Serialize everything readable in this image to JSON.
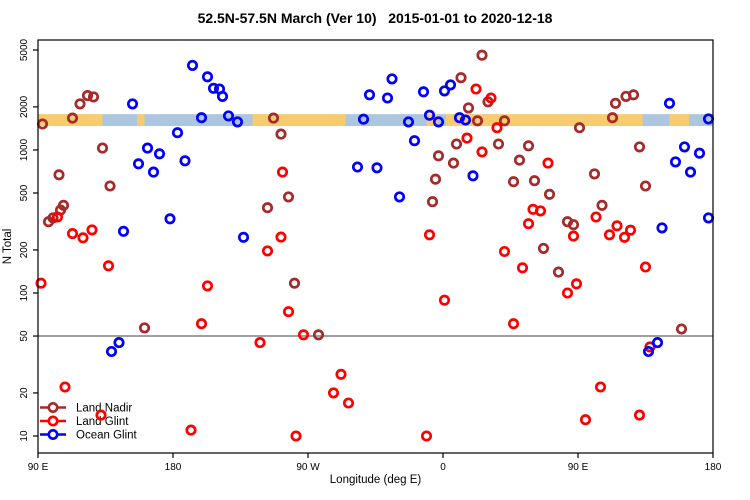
{
  "title": "52.5N-57.5N March (Ver 10)   2015-01-01 to 2020-12-18",
  "x_axis": {
    "label": "Longitude (deg E)",
    "range_deg": [
      90,
      540
    ],
    "ticks": [
      {
        "deg": 90,
        "label": "90 E"
      },
      {
        "deg": 180,
        "label": "180"
      },
      {
        "deg": 270,
        "label": "90 W"
      },
      {
        "deg": 360,
        "label": "0"
      },
      {
        "deg": 450,
        "label": "90 E"
      },
      {
        "deg": 540,
        "label": "180"
      }
    ]
  },
  "y_axis": {
    "label": "N Total",
    "scale": "log",
    "range": [
      10,
      5000
    ],
    "ticks": [
      "10",
      "20",
      "50",
      "100",
      "200",
      "500",
      "1000",
      "2000",
      "5000"
    ]
  },
  "reference_line": {
    "value": 50,
    "color": "#808080"
  },
  "map_band": {
    "top_value": 1780,
    "bottom_value": 1470,
    "land_color": "#F7CB6F",
    "ocean_color": "#ADC6E0",
    "segments": [
      {
        "from": 90,
        "to": 133,
        "surface": "land"
      },
      {
        "from": 133,
        "to": 156,
        "surface": "ocean"
      },
      {
        "from": 156,
        "to": 161,
        "surface": "land"
      },
      {
        "from": 161,
        "to": 233,
        "surface": "ocean"
      },
      {
        "from": 233,
        "to": 295,
        "surface": "land"
      },
      {
        "from": 295,
        "to": 349,
        "surface": "ocean"
      },
      {
        "from": 349,
        "to": 356,
        "surface": "land"
      },
      {
        "from": 356,
        "to": 362,
        "surface": "ocean"
      },
      {
        "from": 362,
        "to": 493,
        "surface": "land"
      },
      {
        "from": 493,
        "to": 511,
        "surface": "ocean"
      },
      {
        "from": 511,
        "to": 524,
        "surface": "land"
      },
      {
        "from": 524,
        "to": 540,
        "surface": "ocean"
      }
    ]
  },
  "legend": {
    "items": [
      {
        "label": "Land Nadir",
        "color": "#A52A2A"
      },
      {
        "label": "Land Glint",
        "color": "#FF0000"
      },
      {
        "label": "Ocean Glint",
        "color": "#0000FF"
      }
    ]
  },
  "chart_data": {
    "type": "scatter",
    "title": "52.5N-57.5N March (Ver 10)   2015-01-01 to 2020-12-18",
    "xlabel": "Longitude (deg E)",
    "ylabel": "N Total",
    "x_unit": "axis degrees east, 90 = 90E wrapping through 180, 270 = 90W, 360 = 0, 450 = 90E, 540 = 180",
    "x_range": [
      90,
      540
    ],
    "y_range": [
      10,
      5000
    ],
    "y_scale": "log",
    "grid": false,
    "legend_position": "bottom-left",
    "series": [
      {
        "name": "Land Nadir",
        "color": "#A52A2A",
        "points": [
          [
            123,
            2400
          ],
          [
            127,
            2350
          ],
          [
            118,
            2100
          ],
          [
            113,
            1670
          ],
          [
            93,
            1520
          ],
          [
            133,
            1030
          ],
          [
            247,
            1670
          ],
          [
            252,
            1290
          ],
          [
            104,
            670
          ],
          [
            138,
            560
          ],
          [
            107,
            410
          ],
          [
            105,
            380
          ],
          [
            100,
            335
          ],
          [
            97,
            315
          ],
          [
            257,
            470
          ],
          [
            243,
            395
          ],
          [
            386,
            4600
          ],
          [
            372,
            3200
          ],
          [
            377,
            1970
          ],
          [
            390,
            2170
          ],
          [
            475,
            2120
          ],
          [
            482,
            2370
          ],
          [
            487,
            2430
          ],
          [
            473,
            1680
          ],
          [
            401,
            1600
          ],
          [
            383,
            1600
          ],
          [
            451,
            1430
          ],
          [
            397,
            1100
          ],
          [
            369,
            1100
          ],
          [
            357,
            910
          ],
          [
            367,
            810
          ],
          [
            355,
            625
          ],
          [
            353,
            435
          ],
          [
            407,
            600
          ],
          [
            417,
            1070
          ],
          [
            421,
            610
          ],
          [
            411,
            850
          ],
          [
            461,
            680
          ],
          [
            431,
            490
          ],
          [
            443,
            315
          ],
          [
            447,
            300
          ],
          [
            466,
            410
          ],
          [
            491,
            1050
          ],
          [
            495,
            560
          ],
          [
            427,
            205
          ],
          [
            261,
            117
          ],
          [
            161,
            57
          ],
          [
            277,
            51
          ],
          [
            437,
            140
          ],
          [
            519,
            56
          ]
        ]
      },
      {
        "name": "Land Glint",
        "color": "#FF0000",
        "points": [
          [
            103,
            340
          ],
          [
            113,
            260
          ],
          [
            120,
            243
          ],
          [
            126,
            276
          ],
          [
            253,
            700
          ],
          [
            252,
            246
          ],
          [
            243,
            197
          ],
          [
            382,
            2670
          ],
          [
            392,
            2310
          ],
          [
            396,
            1430
          ],
          [
            376,
            1210
          ],
          [
            386,
            970
          ],
          [
            430,
            810
          ],
          [
            420,
            385
          ],
          [
            425,
            375
          ],
          [
            417,
            305
          ],
          [
            447,
            250
          ],
          [
            462,
            340
          ],
          [
            476,
            295
          ],
          [
            481,
            245
          ],
          [
            485,
            275
          ],
          [
            471,
            255
          ],
          [
            351,
            255
          ],
          [
            401,
            195
          ],
          [
            137,
            155
          ],
          [
            92,
            117
          ],
          [
            203,
            112
          ],
          [
            257,
            74
          ],
          [
            199,
            61
          ],
          [
            267,
            51
          ],
          [
            238,
            45
          ],
          [
            108,
            22
          ],
          [
            132,
            14
          ],
          [
            292,
            27
          ],
          [
            287,
            20
          ],
          [
            297,
            17
          ],
          [
            192,
            11
          ],
          [
            262,
            10
          ],
          [
            413,
            150
          ],
          [
            449,
            116
          ],
          [
            443,
            100
          ],
          [
            361,
            89
          ],
          [
            495,
            152
          ],
          [
            407,
            61
          ],
          [
            498,
            42
          ],
          [
            465,
            22
          ],
          [
            455,
            13
          ],
          [
            491,
            14
          ],
          [
            349,
            10
          ]
        ]
      },
      {
        "name": "Ocean Glint",
        "color": "#0000FF",
        "points": [
          [
            193,
            3900
          ],
          [
            203,
            3250
          ],
          [
            207,
            2700
          ],
          [
            211,
            2670
          ],
          [
            213,
            2370
          ],
          [
            153,
            2100
          ],
          [
            311,
            2430
          ],
          [
            199,
            1680
          ],
          [
            217,
            1730
          ],
          [
            223,
            1570
          ],
          [
            307,
            1640
          ],
          [
            183,
            1320
          ],
          [
            163,
            1030
          ],
          [
            171,
            940
          ],
          [
            188,
            840
          ],
          [
            157,
            800
          ],
          [
            167,
            700
          ],
          [
            303,
            760
          ],
          [
            316,
            750
          ],
          [
            178,
            330
          ],
          [
            147,
            270
          ],
          [
            227,
            245
          ],
          [
            326,
            3140
          ],
          [
            323,
            2310
          ],
          [
            347,
            2550
          ],
          [
            361,
            2590
          ],
          [
            365,
            2850
          ],
          [
            351,
            1750
          ],
          [
            357,
            1570
          ],
          [
            337,
            1570
          ],
          [
            371,
            1680
          ],
          [
            375,
            1620
          ],
          [
            341,
            1160
          ],
          [
            380,
            660
          ],
          [
            331,
            470
          ],
          [
            511,
            2120
          ],
          [
            521,
            1050
          ],
          [
            531,
            950
          ],
          [
            515,
            825
          ],
          [
            525,
            700
          ],
          [
            506,
            285
          ],
          [
            537,
            335
          ],
          [
            537,
            1650
          ],
          [
            144,
            45
          ],
          [
            139,
            39
          ],
          [
            503,
            45
          ],
          [
            497,
            39
          ]
        ]
      }
    ]
  }
}
